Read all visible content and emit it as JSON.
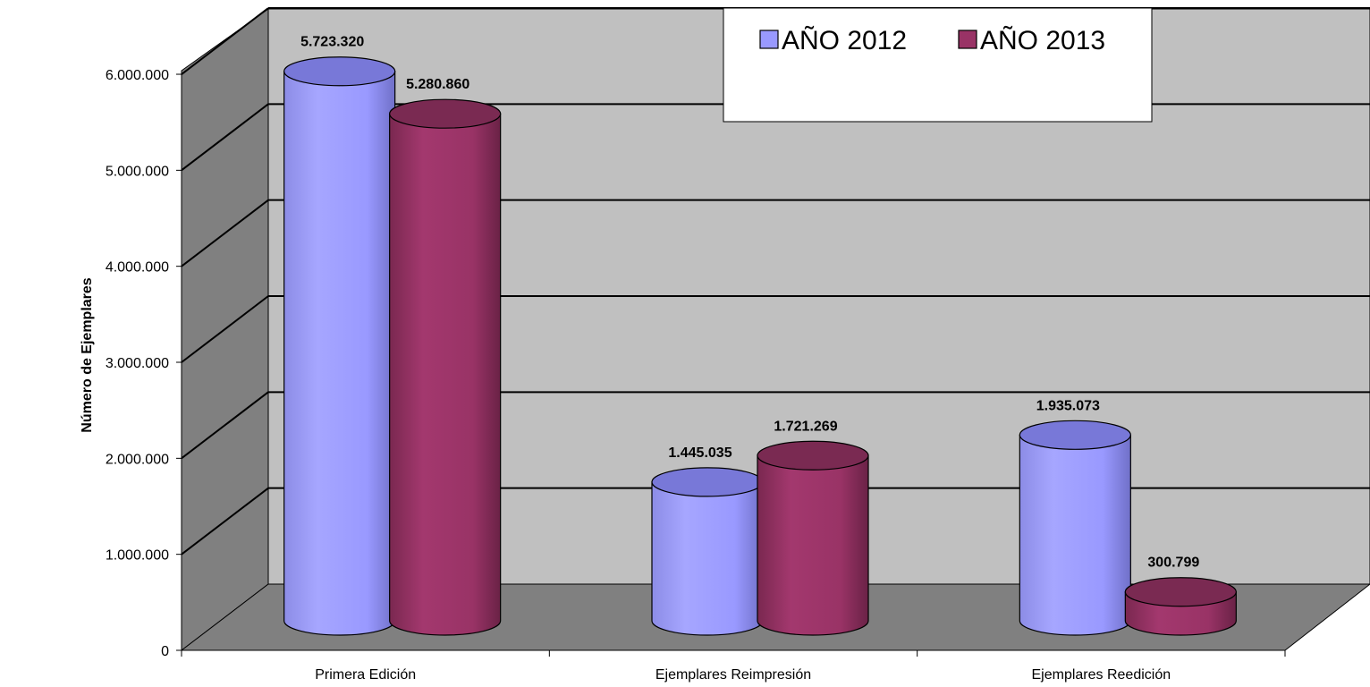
{
  "chart_data": {
    "type": "bar",
    "title": "",
    "xlabel": "",
    "ylabel": "Número de Ejemplares",
    "categories": [
      "Primera Edición",
      "Ejemplares Reimpresión",
      "Ejemplares Reedición"
    ],
    "series": [
      {
        "name": "AÑO 2012",
        "color": "#9999ff",
        "values": [
          5723320,
          1445035,
          1935073
        ],
        "labels": [
          "5.723.320",
          "1.445.035",
          "1.935.073"
        ]
      },
      {
        "name": "AÑO 2013",
        "color": "#993366",
        "values": [
          5280860,
          1721269,
          300799
        ],
        "labels": [
          "5.280.860",
          "1.721.269",
          "300.799"
        ]
      }
    ],
    "ylim": [
      0,
      6000000
    ],
    "yticks": [
      0,
      1000000,
      2000000,
      3000000,
      4000000,
      5000000,
      6000000
    ],
    "ytick_labels": [
      "0",
      "1.000.000",
      "2.000.000",
      "3.000.000",
      "4.000.000",
      "5.000.000",
      "6.000.000"
    ],
    "grid": true,
    "legend_position": "top-right",
    "style": "3d-cylinder",
    "colors": {
      "back_wall": "#c0c0c0",
      "side_wall": "#808080",
      "floor": "#808080"
    }
  }
}
